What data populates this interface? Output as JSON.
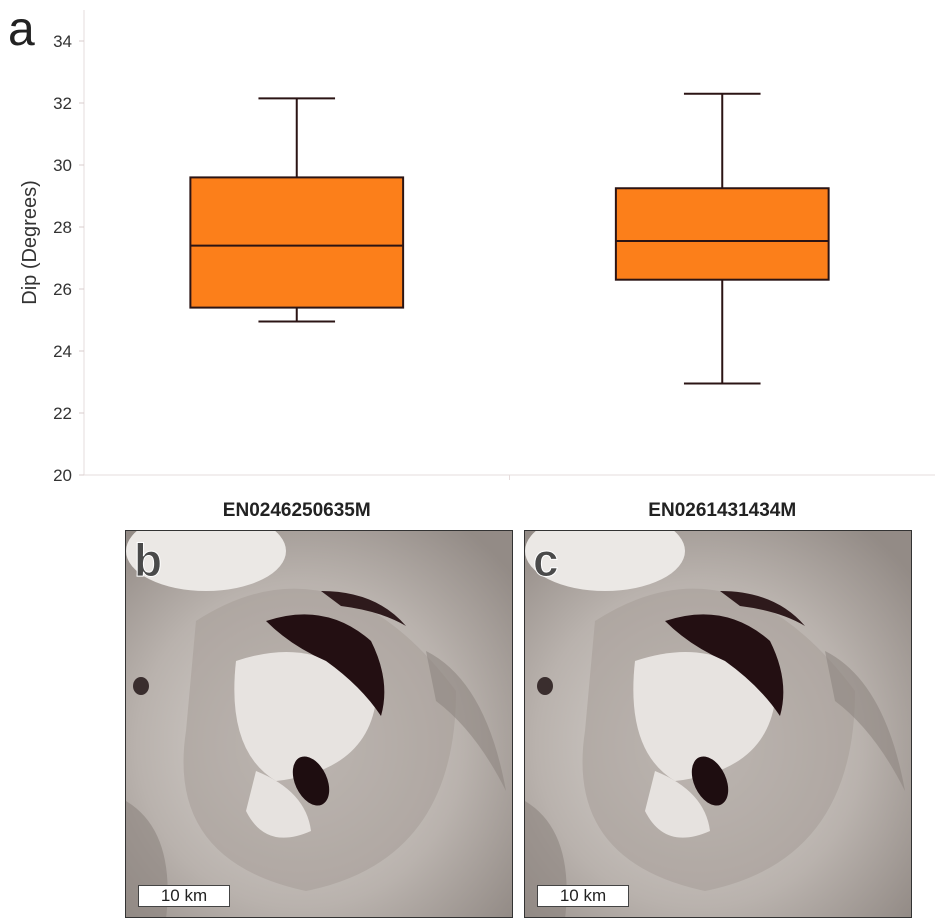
{
  "panels": {
    "a": {
      "letter": "a"
    },
    "b": {
      "letter": "b",
      "scale_label": "10 km"
    },
    "c": {
      "letter": "c",
      "scale_label": "10 km"
    }
  },
  "chart_data": {
    "type": "box",
    "ylabel": "Dip (Degrees)",
    "ylim": [
      20,
      35
    ],
    "yticks": [
      20,
      22,
      24,
      26,
      28,
      30,
      32,
      34
    ],
    "grid": false,
    "box_color": "#fc7f1a",
    "line_color": "#2b1414",
    "categories": [
      "EN0246250635M",
      "EN0261431434M"
    ],
    "boxes": [
      {
        "category": "EN0246250635M",
        "whisker_low": 24.95,
        "q1": 25.4,
        "median": 27.4,
        "q3": 29.6,
        "whisker_high": 32.15
      },
      {
        "category": "EN0261431434M",
        "whisker_low": 22.95,
        "q1": 26.3,
        "median": 27.55,
        "q3": 29.25,
        "whisker_high": 32.3
      }
    ]
  }
}
